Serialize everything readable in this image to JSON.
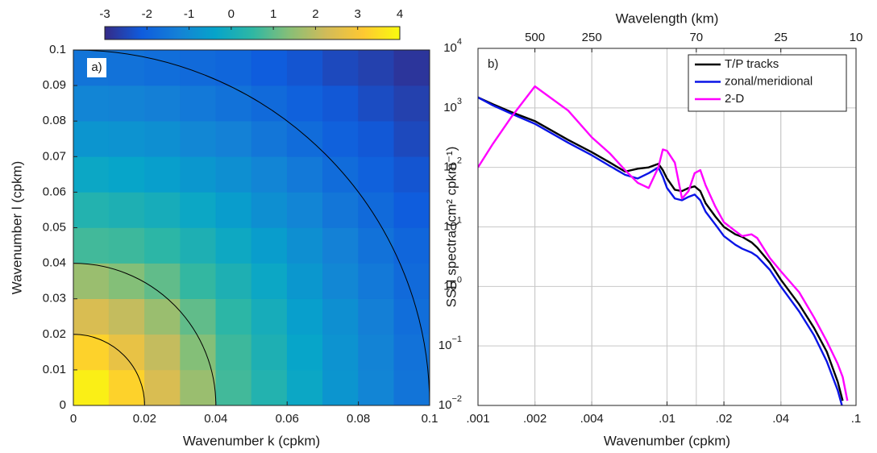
{
  "chart_data": [
    {
      "type": "heatmap",
      "label": "a)",
      "xlabel": "Wavenumber k (cpkm)",
      "ylabel": "Wavenumber l (cpkm)",
      "xbins": [
        0,
        0.01,
        0.02,
        0.03,
        0.04,
        0.05,
        0.06,
        0.07,
        0.08,
        0.09,
        0.1
      ],
      "ybins": [
        0,
        0.01,
        0.02,
        0.03,
        0.04,
        0.05,
        0.06,
        0.07,
        0.08,
        0.09,
        0.1
      ],
      "values": [
        [
          3.8,
          3.3,
          2.4,
          1.6,
          0.7,
          0.25,
          -0.25,
          -0.75,
          -1.15,
          -1.55
        ],
        [
          3.3,
          2.7,
          2.1,
          1.35,
          0.65,
          0.15,
          -0.35,
          -0.8,
          -1.2,
          -1.6
        ],
        [
          2.4,
          2.1,
          1.6,
          1.0,
          0.45,
          0.0,
          -0.5,
          -0.9,
          -1.3,
          -1.7
        ],
        [
          1.6,
          1.35,
          1.0,
          0.55,
          0.15,
          -0.25,
          -0.7,
          -1.1,
          -1.45,
          -1.8
        ],
        [
          0.7,
          0.65,
          0.45,
          0.15,
          -0.2,
          -0.55,
          -0.9,
          -1.25,
          -1.6,
          -1.9
        ],
        [
          0.25,
          0.15,
          0.0,
          -0.25,
          -0.55,
          -0.9,
          -1.15,
          -1.5,
          -1.8,
          -2.1
        ],
        [
          -0.25,
          -0.35,
          -0.5,
          -0.7,
          -0.9,
          -1.15,
          -1.45,
          -1.75,
          -2.0,
          -2.25
        ],
        [
          -0.75,
          -0.8,
          -0.9,
          -1.1,
          -1.25,
          -1.5,
          -1.75,
          -2.0,
          -2.2,
          -2.45
        ],
        [
          -1.15,
          -1.2,
          -1.3,
          -1.45,
          -1.6,
          -1.8,
          -2.0,
          -2.2,
          -2.4,
          -2.6
        ],
        [
          -1.55,
          -1.6,
          -1.7,
          -1.8,
          -1.9,
          -2.1,
          -2.25,
          -2.45,
          -2.6,
          -2.8
        ]
      ],
      "xlim": [
        0,
        0.1
      ],
      "ylim": [
        0,
        0.1
      ],
      "xticks": [
        0,
        0.02,
        0.04,
        0.06,
        0.08,
        0.1
      ],
      "yticks": [
        0,
        0.01,
        0.02,
        0.03,
        0.04,
        0.05,
        0.06,
        0.07,
        0.08,
        0.09,
        0.1
      ],
      "clim": [
        -3,
        4
      ],
      "cticks": [
        -3,
        -2,
        -1,
        0,
        1,
        2,
        3,
        4
      ],
      "colormap": [
        "#352a87",
        "#0f5cdd",
        "#1481d6",
        "#06a4ca",
        "#2eb7a4",
        "#87bf77",
        "#d1bb59",
        "#fec832",
        "#f9fb0e"
      ],
      "circles": [
        0.02,
        0.04,
        0.1
      ],
      "circle_color": "#000000"
    },
    {
      "type": "line",
      "label": "b)",
      "xlabel": "Wavenumber (cpkm)",
      "ylabel": "SSH spectra (cm² cpkm⁻¹)",
      "x2label": "Wavelength (km)",
      "xscale": "log",
      "yscale": "log",
      "x": [
        0.001,
        0.0012,
        0.0015,
        0.002,
        0.003,
        0.004,
        0.005,
        0.006,
        0.007,
        0.008,
        0.009,
        0.0095,
        0.01,
        0.011,
        0.012,
        0.013,
        0.014,
        0.015,
        0.016,
        0.018,
        0.02,
        0.023,
        0.025,
        0.028,
        0.03,
        0.035,
        0.04,
        0.05,
        0.06,
        0.07,
        0.08,
        0.085,
        0.09
      ],
      "series": [
        {
          "name": "T/P tracks",
          "color": "#000000",
          "values": [
            1500,
            1150,
            850,
            600,
            290,
            180,
            120,
            85,
            95,
            100,
            115,
            90,
            65,
            42,
            40,
            45,
            48,
            40,
            25,
            15,
            10,
            7.5,
            6.8,
            5.5,
            4.5,
            2.5,
            1.3,
            0.5,
            0.2,
            0.08,
            0.025,
            0.012,
            null
          ]
        },
        {
          "name": "zonal/meridional",
          "color": "#0a14e6",
          "values": [
            1500,
            1100,
            800,
            540,
            260,
            160,
            105,
            75,
            65,
            80,
            100,
            70,
            45,
            30,
            28,
            32,
            35,
            28,
            18,
            11,
            7,
            5,
            4.3,
            3.7,
            3.2,
            1.9,
            1.0,
            0.38,
            0.15,
            0.055,
            0.018,
            0.009,
            null
          ]
        },
        {
          "name": "2-D",
          "color": "#ff00ff",
          "values": [
            100,
            250,
            700,
            2300,
            900,
            320,
            170,
            90,
            55,
            45,
            100,
            200,
            190,
            120,
            30,
            40,
            80,
            90,
            50,
            22,
            12,
            8.5,
            7,
            7.5,
            6.5,
            3.0,
            1.8,
            0.8,
            0.3,
            0.12,
            0.05,
            0.03,
            0.012
          ]
        }
      ],
      "xlim": [
        0.001,
        0.1
      ],
      "ylim": [
        0.01,
        10000
      ],
      "xticks": [
        {
          "value": 0.001,
          "label": ".001"
        },
        {
          "value": 0.002,
          "label": ".002"
        },
        {
          "value": 0.004,
          "label": ".004"
        },
        {
          "value": 0.01,
          "label": ".01"
        },
        {
          "value": 0.02,
          "label": ".02"
        },
        {
          "value": 0.04,
          "label": ".04"
        },
        {
          "value": 0.1,
          "label": ".1"
        }
      ],
      "yticks": [
        {
          "value": 0.01,
          "label": "10",
          "exponent": "−2"
        },
        {
          "value": 0.1,
          "label": "10",
          "exponent": "−1"
        },
        {
          "value": 1,
          "label": "10",
          "exponent": "0"
        },
        {
          "value": 10,
          "label": "10",
          "exponent": "1"
        },
        {
          "value": 100,
          "label": "10",
          "exponent": "2"
        },
        {
          "value": 1000,
          "label": "10",
          "exponent": "3"
        },
        {
          "value": 10000,
          "label": "10",
          "exponent": "4"
        }
      ],
      "x2lim": [
        1000,
        10
      ],
      "x2ticks": [
        500,
        250,
        70,
        25,
        10
      ],
      "x2_transform": "reciprocal",
      "grid": true,
      "legend": "upper right"
    }
  ]
}
